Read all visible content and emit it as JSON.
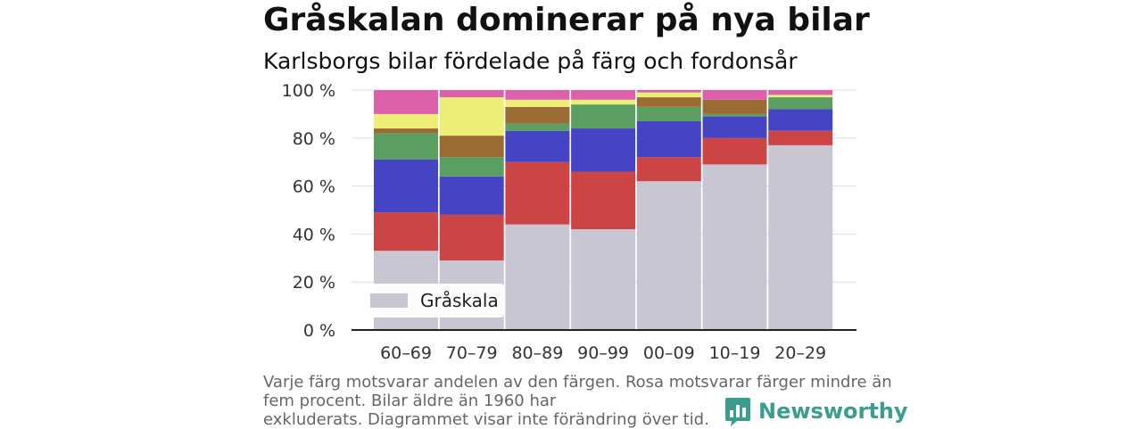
{
  "title": "Gråskalan dominerar på nya bilar",
  "subtitle": "Karlsborgs bilar fördelade på färg och fordonsår",
  "note_lines": [
    "Varje färg motsvarar andelen av den färgen. Rosa motsvarar färger mindre än",
    "fem procent. Bilar äldre än 1960 har",
    "exkluderats. Diagrammet visar inte förändring över tid."
  ],
  "brand": {
    "name": "Newsworthy",
    "icon": "bar-chart-icon",
    "color": "#3b9d8e"
  },
  "chart_data": {
    "type": "bar",
    "stacked": true,
    "categories": [
      "60–69",
      "70–79",
      "80–89",
      "90–99",
      "00–09",
      "10–19",
      "20–29"
    ],
    "y_tick_labels": [
      "0 %",
      "20 %",
      "40 %",
      "60 %",
      "80 %",
      "100 %"
    ],
    "ylim": [
      0,
      100
    ],
    "grid": true,
    "legend": {
      "position": "bottom-left",
      "entries": [
        "Gråskala"
      ]
    },
    "series": [
      {
        "name": "Gråskala",
        "color": "#c8c6d2",
        "values": [
          33,
          29,
          44,
          42,
          62,
          69,
          77
        ]
      },
      {
        "color": "#cc4444",
        "values": [
          16,
          19,
          26,
          24,
          10,
          11,
          6
        ]
      },
      {
        "color": "#4444c4",
        "values": [
          22,
          16,
          13,
          18,
          15,
          9,
          9
        ]
      },
      {
        "color": "#5a9e62",
        "values": [
          11,
          8,
          3,
          10,
          6,
          1,
          5
        ]
      },
      {
        "color": "#9a6c34",
        "values": [
          2,
          9,
          7,
          0,
          4,
          6,
          0
        ]
      },
      {
        "color": "#eeee77",
        "values": [
          6,
          16,
          3,
          2,
          2,
          0,
          1
        ]
      },
      {
        "color": "#dd60aa",
        "values": [
          10,
          3,
          4,
          4,
          1,
          4,
          2
        ]
      }
    ]
  }
}
